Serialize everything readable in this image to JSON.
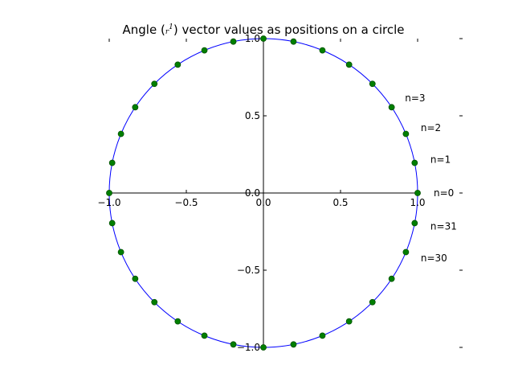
{
  "chart_data": {
    "type": "scatter",
    "title": "Angle (",
    "title_math": "r",
    "title_sup": "1",
    "title_rest": ") vector values as positions on a circle",
    "xlabel": "",
    "ylabel": "",
    "xlim": [
      -1.0,
      1.0
    ],
    "ylim": [
      -1.0,
      1.0
    ],
    "x_ticks": [
      -1.0,
      -0.5,
      0.0,
      0.5,
      1.0
    ],
    "x_tick_labels": [
      "−1.0",
      "−0.5",
      "0.0",
      "0.5",
      "1.0"
    ],
    "y_ticks": [
      -1.0,
      -0.5,
      0.0,
      0.5,
      1.0
    ],
    "y_tick_labels": [
      "−1.0",
      "−0.5",
      "0.0",
      "0.5",
      "1.0"
    ],
    "grid": false,
    "spines": "centered",
    "circle": {
      "radius": 1.0,
      "color": "#0000ff"
    },
    "points": {
      "count": 32,
      "step_degrees": 11.25,
      "color": "#007f00",
      "edge_color": "#005000"
    },
    "annotations": [
      {
        "text": "n=0",
        "angle_deg": 0
      },
      {
        "text": "n=1",
        "angle_deg": 11.25
      },
      {
        "text": "n=2",
        "angle_deg": 22.5
      },
      {
        "text": "n=3",
        "angle_deg": 33.75
      },
      {
        "text": "n=30",
        "angle_deg": 337.5
      },
      {
        "text": "n=31",
        "angle_deg": 348.75
      }
    ]
  }
}
